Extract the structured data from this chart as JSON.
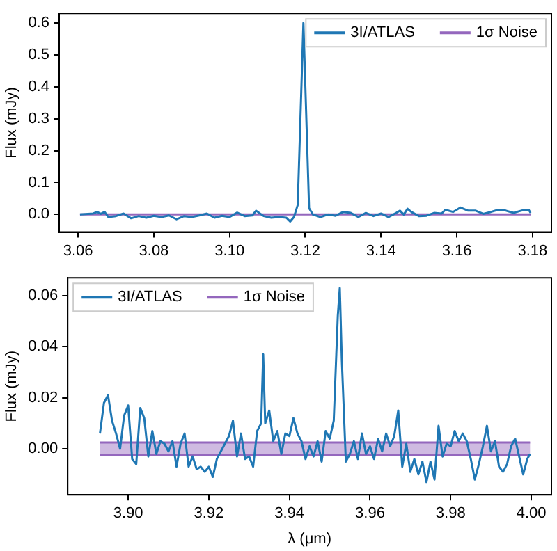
{
  "chart_data": [
    {
      "type": "line",
      "ylabel": "Flux (mJy)",
      "xlim": [
        3.055,
        3.185
      ],
      "ylim": [
        -0.055,
        0.63
      ],
      "xticks": [
        {
          "value": 3.06,
          "label": "3.06"
        },
        {
          "value": 3.08,
          "label": "3.08"
        },
        {
          "value": 3.1,
          "label": "3.10"
        },
        {
          "value": 3.12,
          "label": "3.12"
        },
        {
          "value": 3.14,
          "label": "3.14"
        },
        {
          "value": 3.16,
          "label": "3.16"
        },
        {
          "value": 3.18,
          "label": "3.18"
        }
      ],
      "yticks": [
        {
          "value": 0,
          "label": "0.0"
        },
        {
          "value": 0.1,
          "label": "0.1"
        },
        {
          "value": 0.2,
          "label": "0.2"
        },
        {
          "value": 0.3,
          "label": "0.3"
        },
        {
          "value": 0.4,
          "label": "0.4"
        },
        {
          "value": 0.5,
          "label": "0.5"
        },
        {
          "value": 0.6,
          "label": "0.6"
        }
      ],
      "legend": "top right",
      "series": [
        {
          "name": "3I/ATLAS",
          "color": "#1f77b4",
          "x": [
            3.0605,
            3.064,
            3.065,
            3.066,
            3.067,
            3.068,
            3.07,
            3.072,
            3.074,
            3.076,
            3.078,
            3.08,
            3.082,
            3.084,
            3.086,
            3.088,
            3.09,
            3.092,
            3.094,
            3.096,
            3.098,
            3.1,
            3.102,
            3.104,
            3.106,
            3.107,
            3.109,
            3.111,
            3.113,
            3.115,
            3.116,
            3.117,
            3.118,
            3.1195,
            3.121,
            3.122,
            3.124,
            3.126,
            3.128,
            3.13,
            3.132,
            3.134,
            3.136,
            3.138,
            3.14,
            3.142,
            3.144,
            3.145,
            3.146,
            3.147,
            3.148,
            3.15,
            3.152,
            3.154,
            3.156,
            3.157,
            3.159,
            3.161,
            3.163,
            3.165,
            3.167,
            3.169,
            3.171,
            3.173,
            3.175,
            3.177,
            3.179,
            3.1795
          ],
          "values": [
            0.0,
            0.003,
            0.008,
            0.002,
            0.008,
            -0.008,
            -0.005,
            0.003,
            -0.012,
            -0.005,
            -0.01,
            -0.004,
            -0.008,
            -0.003,
            -0.015,
            -0.005,
            -0.008,
            -0.003,
            0.003,
            -0.01,
            -0.004,
            -0.008,
            0.006,
            -0.005,
            -0.003,
            0.012,
            -0.005,
            -0.01,
            -0.008,
            -0.01,
            -0.022,
            -0.008,
            0.03,
            0.6,
            0.02,
            0.0,
            -0.008,
            0.0,
            -0.004,
            0.008,
            0.005,
            -0.008,
            0.005,
            -0.005,
            0.003,
            -0.008,
            0.005,
            0.012,
            0.0,
            0.018,
            0.008,
            -0.005,
            -0.004,
            0.005,
            0.003,
            0.015,
            0.008,
            0.022,
            0.012,
            0.012,
            0.002,
            0.008,
            0.015,
            0.012,
            0.005,
            0.012,
            0.015,
            0.005
          ]
        },
        {
          "name": "1σ Noise",
          "color": "#9467bd",
          "x": [
            3.0605,
            3.1795
          ],
          "values": [
            0,
            0
          ]
        }
      ]
    },
    {
      "type": "line",
      "xlabel": "λ (μm)",
      "ylabel": "Flux (mJy)",
      "xlim": [
        3.885,
        4.005
      ],
      "ylim": [
        -0.018,
        0.067
      ],
      "xticks": [
        {
          "value": 3.9,
          "label": "3.90"
        },
        {
          "value": 3.92,
          "label": "3.92"
        },
        {
          "value": 3.94,
          "label": "3.94"
        },
        {
          "value": 3.96,
          "label": "3.96"
        },
        {
          "value": 3.98,
          "label": "3.98"
        },
        {
          "value": 4.0,
          "label": "4.00"
        }
      ],
      "yticks": [
        {
          "value": 0,
          "label": "0.00"
        },
        {
          "value": 0.02,
          "label": "0.02"
        },
        {
          "value": 0.04,
          "label": "0.04"
        },
        {
          "value": 0.06,
          "label": "0.06"
        }
      ],
      "legend": "top left",
      "series": [
        {
          "name": "3I/ATLAS",
          "color": "#1f77b4",
          "x": [
            3.893,
            3.894,
            3.895,
            3.896,
            3.897,
            3.898,
            3.899,
            3.9,
            3.901,
            3.902,
            3.903,
            3.904,
            3.905,
            3.906,
            3.907,
            3.908,
            3.909,
            3.91,
            3.911,
            3.912,
            3.913,
            3.914,
            3.915,
            3.916,
            3.917,
            3.918,
            3.919,
            3.92,
            3.921,
            3.922,
            3.923,
            3.924,
            3.925,
            3.926,
            3.927,
            3.928,
            3.929,
            3.93,
            3.931,
            3.932,
            3.933,
            3.9335,
            3.934,
            3.935,
            3.936,
            3.937,
            3.938,
            3.939,
            3.94,
            3.941,
            3.942,
            3.943,
            3.944,
            3.945,
            3.946,
            3.947,
            3.948,
            3.949,
            3.95,
            3.951,
            3.952,
            3.9525,
            3.953,
            3.954,
            3.955,
            3.956,
            3.957,
            3.958,
            3.959,
            3.96,
            3.961,
            3.962,
            3.963,
            3.964,
            3.965,
            3.966,
            3.967,
            3.968,
            3.969,
            3.97,
            3.971,
            3.972,
            3.973,
            3.974,
            3.975,
            3.976,
            3.977,
            3.978,
            3.979,
            3.98,
            3.981,
            3.982,
            3.983,
            3.984,
            3.985,
            3.986,
            3.987,
            3.988,
            3.989,
            3.99,
            3.991,
            3.992,
            3.993,
            3.994,
            3.995,
            3.996,
            3.997,
            3.998,
            3.999,
            3.9997
          ],
          "values": [
            0.006,
            0.018,
            0.021,
            0.011,
            0.006,
            0.0,
            0.013,
            0.017,
            -0.004,
            -0.006,
            0.016,
            0.012,
            -0.003,
            0.007,
            -0.002,
            0.003,
            0.002,
            -0.001,
            0.003,
            -0.007,
            0.002,
            0.006,
            -0.007,
            -0.003,
            -0.008,
            -0.007,
            -0.009,
            -0.007,
            -0.011,
            -0.004,
            -0.001,
            0.002,
            0.005,
            0.011,
            -0.003,
            0.006,
            -0.004,
            -0.003,
            -0.007,
            0.007,
            0.01,
            0.037,
            0.01,
            0.015,
            0.003,
            0.007,
            -0.002,
            0.006,
            0.005,
            0.012,
            0.006,
            0.003,
            -0.004,
            0.001,
            -0.003,
            0.003,
            -0.005,
            0.007,
            0.004,
            0.011,
            0.052,
            0.063,
            0.035,
            -0.005,
            -0.002,
            0.003,
            -0.004,
            0.006,
            -0.002,
            0.001,
            -0.004,
            0.004,
            -0.001,
            0.006,
            0.001,
            0.005,
            0.015,
            -0.007,
            0.002,
            -0.009,
            -0.004,
            -0.01,
            -0.005,
            -0.013,
            -0.005,
            -0.012,
            0.009,
            -0.003,
            0.002,
            0.001,
            0.007,
            0.003,
            0.006,
            0.003,
            -0.004,
            -0.012,
            -0.006,
            0.001,
            0.009,
            -0.001,
            0.003,
            -0.007,
            -0.009,
            -0.006,
            0.001,
            0.004,
            -0.003,
            -0.01,
            -0.004,
            -0.002
          ]
        },
        {
          "name": "1σ Noise",
          "color": "#9467bd",
          "x": [
            3.893,
            3.9997
          ],
          "values": [
            null,
            null
          ],
          "lower": [
            -0.0025,
            -0.0025
          ],
          "upper": [
            0.0025,
            0.0025
          ]
        }
      ],
      "ref_lines": [
        {
          "axis": "y",
          "value": 0.0025,
          "color": "#9467bd"
        },
        {
          "axis": "y",
          "value": -0.0025,
          "color": "#9467bd"
        }
      ]
    }
  ]
}
